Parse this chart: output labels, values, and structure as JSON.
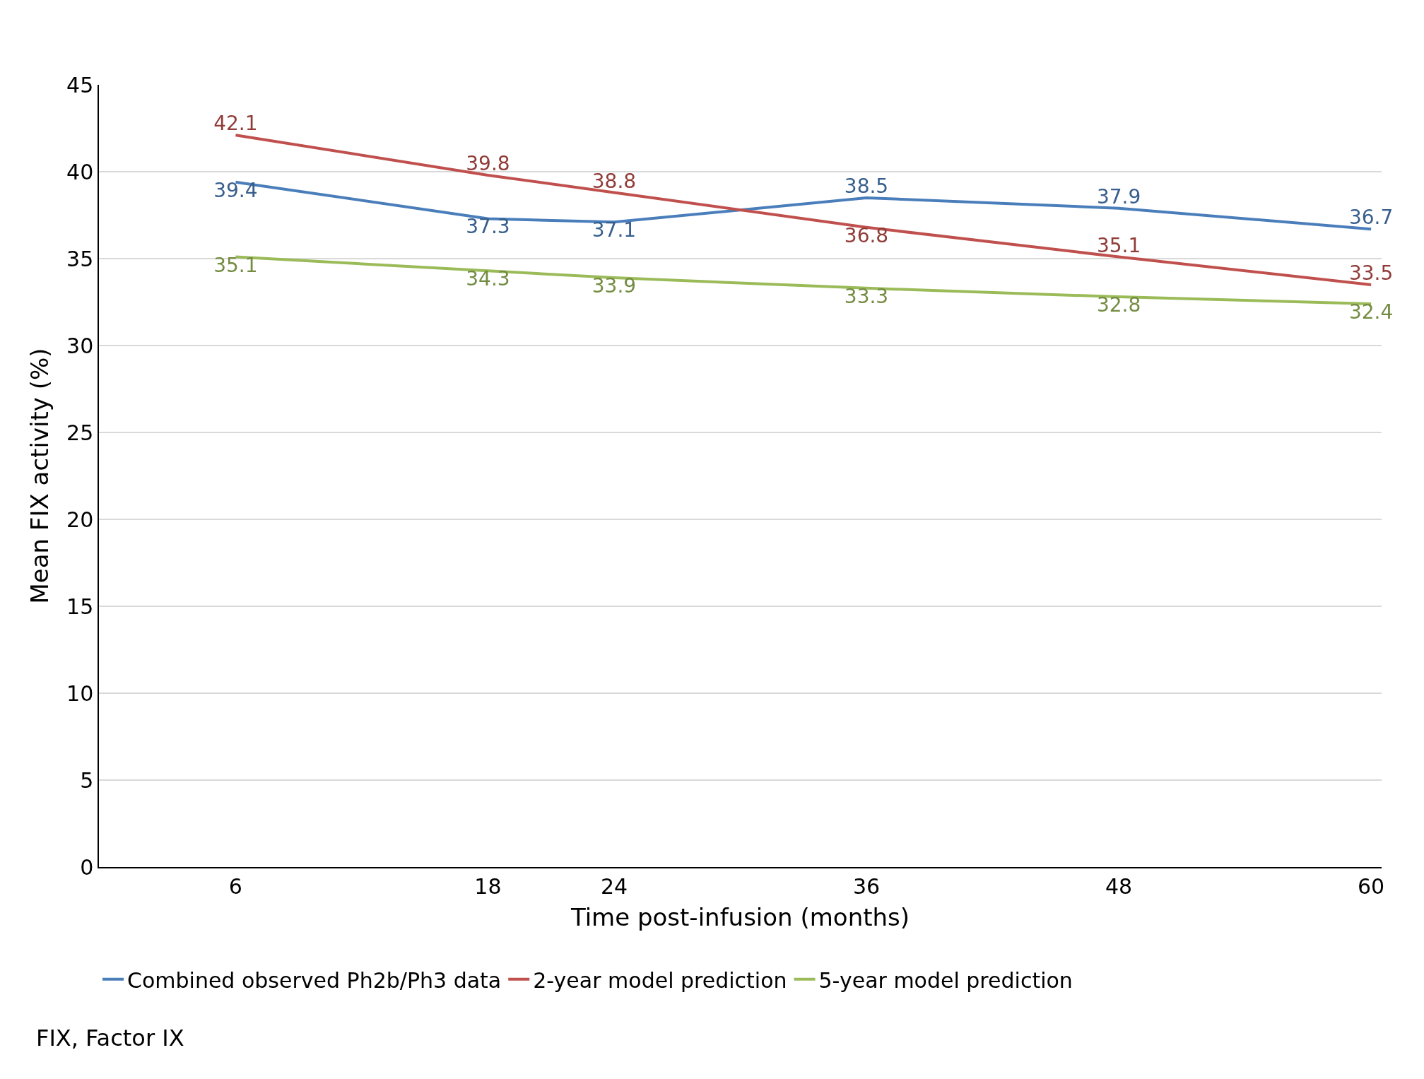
{
  "chart_data": {
    "type": "line",
    "xlabel": "Time post-infusion (months)",
    "ylabel": "Mean FIX activity (%)",
    "x": [
      6,
      18,
      24,
      36,
      48,
      60
    ],
    "xlim": [
      -0.5,
      60.5
    ],
    "xticks": [
      6,
      18,
      24,
      36,
      48,
      60
    ],
    "ylim": [
      0,
      45
    ],
    "yticks": [
      0,
      5,
      10,
      15,
      20,
      25,
      30,
      35,
      40,
      45
    ],
    "series": [
      {
        "name": "Combined observed Ph2b/Ph3 data",
        "color": "#4a7ebb",
        "values": [
          39.4,
          37.3,
          37.1,
          38.5,
          37.9,
          36.7
        ]
      },
      {
        "name": "2-year model prediction",
        "color": "#c0504d",
        "values": [
          42.1,
          39.8,
          38.8,
          36.8,
          35.1,
          33.5
        ]
      },
      {
        "name": "5-year model prediction",
        "color": "#9bbb59",
        "values": [
          35.1,
          34.3,
          33.9,
          33.3,
          32.8,
          32.4
        ]
      }
    ],
    "data_labels": true,
    "grid": "y",
    "legend": "bottom",
    "marker": "none",
    "line_style": "solid",
    "annotations": [
      "FIX, Factor IX"
    ]
  }
}
